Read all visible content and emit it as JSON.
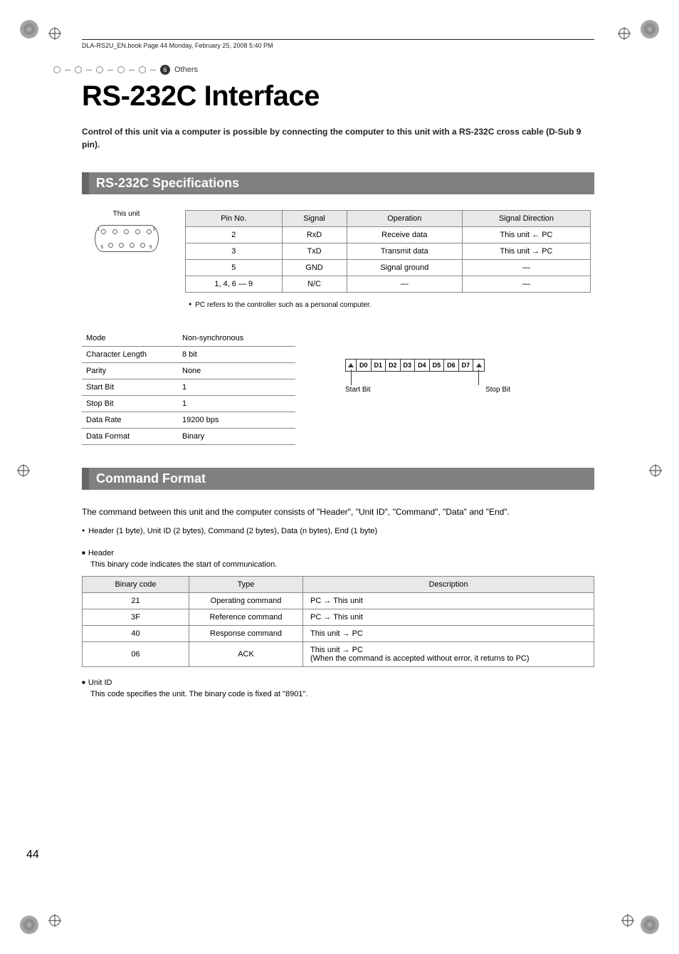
{
  "book_header": "DLA-RS2U_EN.book  Page 44  Monday, February 25, 2008  5:40 PM",
  "breadcrumb": {
    "number": "6",
    "label": "Others"
  },
  "title": "RS-232C Interface",
  "intro": "Control of this unit via a computer is possible by connecting the computer to this unit with a RS-232C cross cable (D-Sub 9 pin).",
  "sections": {
    "spec": "RS-232C Specifications",
    "cmd": "Command Format"
  },
  "unit_label": "This unit",
  "pin_table": {
    "headers": [
      "Pin No.",
      "Signal",
      "Operation",
      "Signal Direction"
    ],
    "rows": [
      [
        "2",
        "RxD",
        "Receive data",
        "This unit ← PC"
      ],
      [
        "3",
        "TxD",
        "Transmit data",
        "This unit → PC"
      ],
      [
        "5",
        "GND",
        "Signal ground",
        "—"
      ],
      [
        "1, 4, 6 — 9",
        "N/C",
        "—",
        "—"
      ]
    ]
  },
  "pin_note": "PC refers to the controller such as a personal computer.",
  "spec_table": [
    [
      "Mode",
      "Non-synchronous"
    ],
    [
      "Character Length",
      "8 bit"
    ],
    [
      "Parity",
      "None"
    ],
    [
      "Start Bit",
      "1"
    ],
    [
      "Stop Bit",
      "1"
    ],
    [
      "Data Rate",
      "19200 bps"
    ],
    [
      "Data Format",
      "Binary"
    ]
  ],
  "bits": [
    "D0",
    "D1",
    "D2",
    "D3",
    "D4",
    "D5",
    "D6",
    "D7"
  ],
  "bit_labels": {
    "start": "Start Bit",
    "stop": "Stop Bit"
  },
  "cmd_intro": "The command between this unit and the computer consists of \"Header\", \"Unit ID\", \"Command\", \"Data\" and \"End\".",
  "cmd_note": "Header (1 byte), Unit ID (2 bytes), Command (2 bytes), Data (n bytes), End (1 byte)",
  "header_section": {
    "title": "Header",
    "desc": "This binary code indicates the start of communication.",
    "headers": [
      "Binary code",
      "Type",
      "Description"
    ],
    "rows": [
      [
        "21",
        "Operating command",
        "PC → This unit"
      ],
      [
        "3F",
        "Reference command",
        "PC → This unit"
      ],
      [
        "40",
        "Response command",
        "This unit → PC"
      ],
      [
        "06",
        "ACK",
        "This unit → PC\n(When the command is accepted without error, it returns to PC)"
      ]
    ]
  },
  "unitid_section": {
    "title": "Unit ID",
    "desc": "This code specifies the unit. The binary code is fixed at \"8901\"."
  },
  "page_number": "44",
  "dsub_pins": {
    "label_tl": "1",
    "label_tr": "5",
    "label_bl": "6",
    "label_br": "9"
  }
}
